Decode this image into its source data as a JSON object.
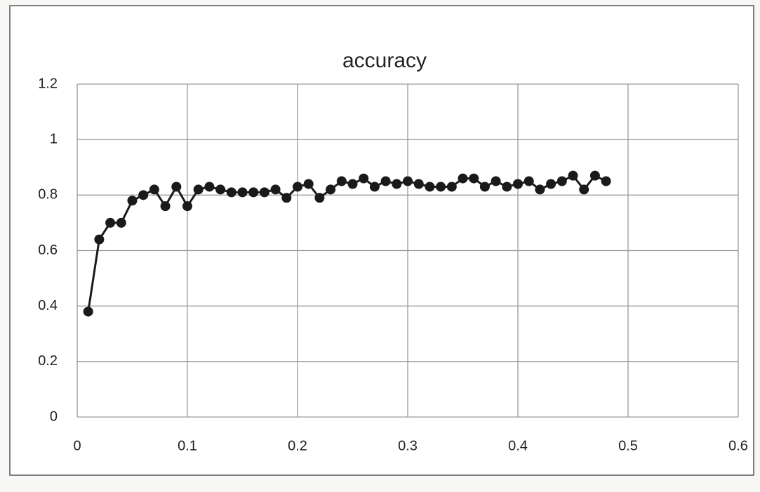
{
  "chart_data": {
    "type": "line",
    "title": "accuracy",
    "x": [
      0.01,
      0.02,
      0.03,
      0.04,
      0.05,
      0.06,
      0.07,
      0.08,
      0.09,
      0.1,
      0.11,
      0.12,
      0.13,
      0.14,
      0.15,
      0.16,
      0.17,
      0.18,
      0.19,
      0.2,
      0.21,
      0.22,
      0.23,
      0.24,
      0.25,
      0.26,
      0.27,
      0.28,
      0.29,
      0.3,
      0.31,
      0.32,
      0.33,
      0.34,
      0.35,
      0.36,
      0.37,
      0.38,
      0.39,
      0.4,
      0.41,
      0.42,
      0.43,
      0.44,
      0.45,
      0.46,
      0.47,
      0.48
    ],
    "values": [
      0.38,
      0.64,
      0.7,
      0.7,
      0.78,
      0.8,
      0.82,
      0.76,
      0.83,
      0.76,
      0.82,
      0.83,
      0.82,
      0.81,
      0.81,
      0.81,
      0.81,
      0.82,
      0.79,
      0.83,
      0.84,
      0.79,
      0.82,
      0.85,
      0.84,
      0.86,
      0.83,
      0.85,
      0.84,
      0.85,
      0.84,
      0.83,
      0.83,
      0.83,
      0.86,
      0.86,
      0.83,
      0.85,
      0.83,
      0.84,
      0.85,
      0.82,
      0.84,
      0.85,
      0.87,
      0.82,
      0.87,
      0.85
    ],
    "color": "#1a1a1a",
    "xlim": [
      0,
      0.6
    ],
    "xticks": [
      0,
      0.1,
      0.2,
      0.3,
      0.4,
      0.5,
      0.6
    ],
    "ylim": [
      0,
      1.2
    ],
    "yticks": [
      0,
      0.2,
      0.4,
      0.6,
      0.8,
      1,
      1.2
    ],
    "grid": true
  }
}
